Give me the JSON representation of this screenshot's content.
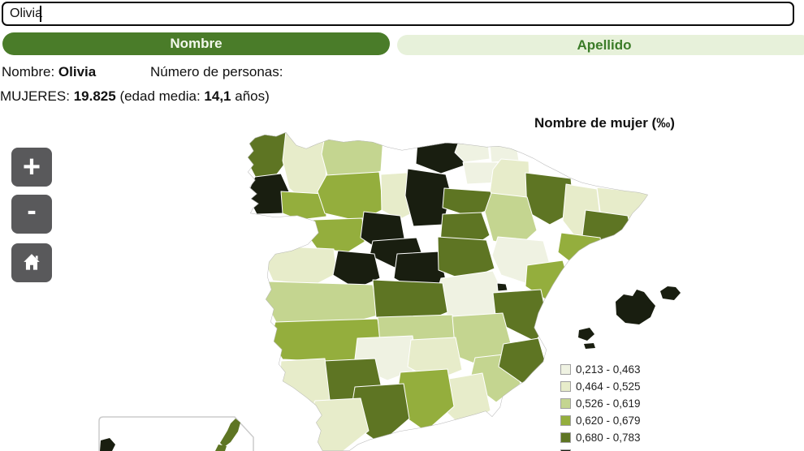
{
  "search": {
    "value": "Olivia"
  },
  "tabs": {
    "nombre": "Nombre",
    "apellido": "Apellido"
  },
  "info": {
    "name_label": "Nombre:",
    "name_value": "Olivia",
    "persons_label": "Número de personas:",
    "women_label": "MUJERES:",
    "women_count": "19.825",
    "age_prefix": "(edad media:",
    "age_value": "14,1",
    "age_suffix": "años)"
  },
  "map": {
    "title": "Nombre de mujer (‰)",
    "controls": {
      "zoom_in_label": "+",
      "zoom_out_label": "-"
    },
    "legend": [
      {
        "range": "0,213 - 0,463",
        "color": "#eff2e2"
      },
      {
        "range": "0,464 - 0,525",
        "color": "#e7ecca"
      },
      {
        "range": "0,526 - 0,619",
        "color": "#c4d590"
      },
      {
        "range": "0,620 - 0,679",
        "color": "#94ae3d"
      },
      {
        "range": "0,680 - 0,783",
        "color": "#5e7523"
      }
    ],
    "darkest_color": "#191e10",
    "class_colors": [
      "#eff2e2",
      "#e7ecca",
      "#c4d590",
      "#94ae3d",
      "#5e7523",
      "#191e10"
    ],
    "regions": {
      "a-coruna": 5,
      "lugo": 2,
      "pontevedra": 6,
      "ourense": 4,
      "asturias": 3,
      "leon": 4,
      "cantabria": 6,
      "palencia": 2,
      "burgos": 6,
      "bizkaia": 1,
      "gipuzkoa": 1,
      "araba": 1,
      "navarra": 2,
      "la-rioja": 5,
      "zamora": 4,
      "valladolid": 6,
      "soria": 5,
      "segovia": 6,
      "salamanca": 2,
      "avila": 6,
      "madrid": 6,
      "guadalajara": 5,
      "cuenca": 1,
      "teruel": 1,
      "zaragoza": 3,
      "huesca": 5,
      "lleida": 2,
      "girona": 2,
      "barcelona": 5,
      "tarragona": 4,
      "castellon": 4,
      "valencia": 5,
      "ademuz-exclave": 6,
      "caceres": 3,
      "toledo": 5,
      "badajoz": 4,
      "ciudad-real": 3,
      "albacete": 3,
      "murcia": 3,
      "alicante": 5,
      "jaen": 2,
      "cordoba": 1,
      "sevilla": 5,
      "huelva": 2,
      "cadiz": 2,
      "malaga": 5,
      "granada": 4,
      "almeria": 2,
      "mallorca": 6,
      "menorca": 6,
      "ibiza": 6,
      "formentera": 6,
      "la-palma": 6,
      "lanzarote": 5,
      "fuerteventura": 5
    }
  },
  "colors": {
    "tab_active_bg": "#4a7c29",
    "tab_active_text": "#f3f8ec",
    "tab_inactive_bg": "#e7f1da",
    "tab_inactive_text": "#3b7c28",
    "control_bg": "#59595b",
    "control_text": "#ffffff",
    "input_border": "#0a0a0a",
    "text": "#111111"
  }
}
